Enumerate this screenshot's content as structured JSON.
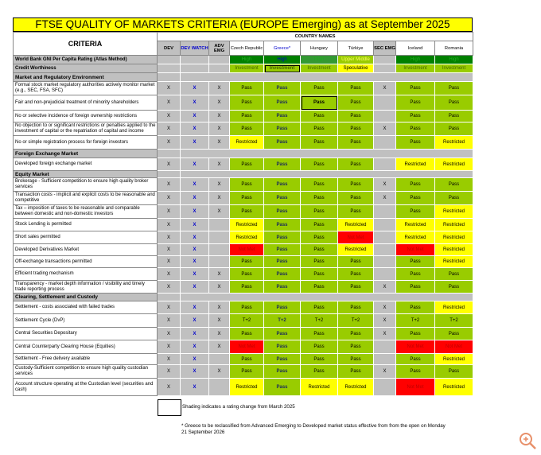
{
  "title": "FTSE QUALITY OF MARKETS CRITERIA (EUROPE Emerging) as at September 2025",
  "header": {
    "criteria_label": "CRITERIA",
    "country_names_label": "COUNTRY NAMES",
    "columns": [
      "DEV",
      "DEV WATCH",
      "ADV EMG",
      "Czech Republic",
      "Greece*",
      "Hungary",
      "Türkiye",
      "SEC EMG",
      "Iceland",
      "Romania"
    ]
  },
  "colors": {
    "pass": "#99cc00",
    "restricted": "#ffff00",
    "not_met": "#ff0000",
    "high": "#008000",
    "grey": "#c0c0c0",
    "title": "#ffff00"
  },
  "rows": [
    {
      "type": "bold",
      "label": "World Bank GNI Per Capita Rating (Atlas Method)",
      "cells": [
        "",
        "",
        "",
        "High",
        "High",
        "High",
        "Upper Middle",
        "",
        "High",
        "High"
      ]
    },
    {
      "type": "bold",
      "label": "Credit Worthiness",
      "cells": [
        "",
        "",
        "",
        "Investment",
        "Investment",
        "Investment",
        "Speculative",
        "",
        "Investment",
        "Investment"
      ],
      "changed": [
        4
      ]
    },
    {
      "type": "section",
      "label": "Market and Regulatory Environment"
    },
    {
      "label": "Formal stock market regulatory authorities actively monitor market (e.g., SEC, FSA, SFC)",
      "cells": [
        "X",
        "X",
        "X",
        "Pass",
        "Pass",
        "Pass",
        "Pass",
        "X",
        "Pass",
        "Pass"
      ]
    },
    {
      "label": "Fair and non-prejudicial treatment of minority shareholders",
      "cells": [
        "X",
        "X",
        "X",
        "Pass",
        "Pass",
        "Pass",
        "Pass",
        "",
        "Pass",
        "Pass"
      ],
      "changed": [
        5
      ]
    },
    {
      "label": "No or selective incidence of foreign ownership restrictions",
      "cells": [
        "X",
        "X",
        "X",
        "Pass",
        "Pass",
        "Pass",
        "Pass",
        "",
        "Pass",
        "Pass"
      ]
    },
    {
      "label": "No objection to or significant restrictions or penalties applied to the investment of capital or the repatriation of capital and income",
      "cells": [
        "X",
        "X",
        "X",
        "Pass",
        "Pass",
        "Pass",
        "Pass",
        "X",
        "Pass",
        "Pass"
      ]
    },
    {
      "label": "No or simple registration process for foreign investors",
      "cells": [
        "X",
        "X",
        "X",
        "Restricted",
        "Pass",
        "Pass",
        "Pass",
        "",
        "Pass",
        "Restricted"
      ]
    },
    {
      "type": "section",
      "label": "Foreign Exchange Market"
    },
    {
      "label": "Developed foreign exchange market",
      "cells": [
        "X",
        "X",
        "X",
        "Pass",
        "Pass",
        "Pass",
        "Pass",
        "",
        "Restricted",
        "Restricted"
      ]
    },
    {
      "type": "section",
      "label": "Equity Market"
    },
    {
      "label": "Brokerage - Sufficient competition to ensure high quality broker services",
      "cells": [
        "X",
        "X",
        "X",
        "Pass",
        "Pass",
        "Pass",
        "Pass",
        "X",
        "Pass",
        "Pass"
      ]
    },
    {
      "label": "Transaction costs - implicit and explicit costs to be reasonable and competitive",
      "cells": [
        "X",
        "X",
        "X",
        "Pass",
        "Pass",
        "Pass",
        "Pass",
        "X",
        "Pass",
        "Pass"
      ]
    },
    {
      "label": "Tax – imposition of taxes to be reasonable and comparable between domestic and non-domestic investors",
      "cells": [
        "X",
        "X",
        "X",
        "Pass",
        "Pass",
        "Pass",
        "Pass",
        "",
        "Pass",
        "Restricted"
      ]
    },
    {
      "label": "Stock Lending is permitted",
      "cells": [
        "X",
        "X",
        "",
        "Restricted",
        "Pass",
        "Pass",
        "Restricted",
        "",
        "Restricted",
        "Restricted"
      ]
    },
    {
      "label": "Short sales permitted",
      "cells": [
        "X",
        "X",
        "",
        "Restricted",
        "Pass",
        "Pass",
        "Not Met",
        "",
        "Restricted",
        "Restricted"
      ]
    },
    {
      "label": "Developed Derivatives Market",
      "cells": [
        "X",
        "X",
        "",
        "Not Met",
        "Pass",
        "Pass",
        "Restricted",
        "",
        "Not Met",
        "Restricted"
      ]
    },
    {
      "label": "Off-exchange transactions permitted",
      "cells": [
        "X",
        "X",
        "",
        "Pass",
        "Pass",
        "Pass",
        "Pass",
        "",
        "Pass",
        "Restricted"
      ]
    },
    {
      "label": "Efficient trading mechanism",
      "cells": [
        "X",
        "X",
        "X",
        "Pass",
        "Pass",
        "Pass",
        "Pass",
        "",
        "Pass",
        "Pass"
      ]
    },
    {
      "label": "Transparency - market depth information / visibility and timely trade reporting process",
      "cells": [
        "X",
        "X",
        "X",
        "Pass",
        "Pass",
        "Pass",
        "Pass",
        "X",
        "Pass",
        "Pass"
      ]
    },
    {
      "type": "section",
      "label": "Clearing, Settlement and Custody"
    },
    {
      "label": "Settlement - costs associated with failed trades",
      "cells": [
        "X",
        "X",
        "X",
        "Pass",
        "Pass",
        "Pass",
        "Pass",
        "X",
        "Pass",
        "Restricted"
      ]
    },
    {
      "label": "Settlement Cycle (DvP)",
      "cells": [
        "X",
        "X",
        "X",
        "T+2",
        "T+2",
        "T+2",
        "T+2",
        "X",
        "T+2",
        "T+2"
      ]
    },
    {
      "label": "Central Securities Depositary",
      "cells": [
        "X",
        "X",
        "X",
        "Pass",
        "Pass",
        "Pass",
        "Pass",
        "X",
        "Pass",
        "Pass"
      ]
    },
    {
      "label": "Central Counterparty Clearing House (Equities)",
      "cells": [
        "X",
        "X",
        "X",
        "Not Met",
        "Pass",
        "Pass",
        "Pass",
        "",
        "Not Met",
        "Not Met"
      ]
    },
    {
      "label": "Settlement - Free delivery available",
      "cells": [
        "X",
        "X",
        "",
        "Pass",
        "Pass",
        "Pass",
        "Pass",
        "",
        "Pass",
        "Restricted"
      ]
    },
    {
      "label": "Custody-Sufficient competition to ensure high quality custodian services",
      "cells": [
        "X",
        "X",
        "X",
        "Pass",
        "Pass",
        "Pass",
        "Pass",
        "X",
        "Pass",
        "Pass"
      ]
    },
    {
      "label": "Account structure operating at the Custodian level (securities and cash)",
      "cells": [
        "X",
        "X",
        "",
        "Restricted",
        "Pass",
        "Restricted",
        "Restricted",
        "",
        "Not Met",
        "Restricted"
      ]
    }
  ],
  "legend": {
    "text": "Shading indicates a rating change from March 2025"
  },
  "note": "* Greece to be reclassified from Advanced Emerging to Developed market status effective from from the open on Monday 21 September 2026",
  "zoom_icon": "zoom-in-icon"
}
